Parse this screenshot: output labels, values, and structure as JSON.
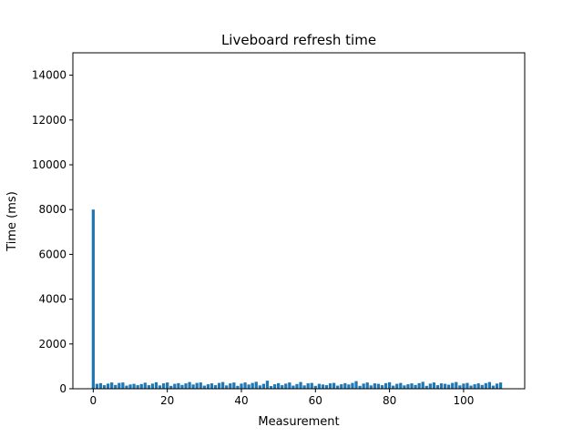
{
  "chart_data": {
    "type": "bar",
    "title": "Liveboard refresh time",
    "xlabel": "Measurement",
    "ylabel": "Time (ms)",
    "xlim": [
      -5.5,
      116.5
    ],
    "ylim": [
      0,
      15000
    ],
    "xticks": [
      0,
      20,
      40,
      60,
      80,
      100
    ],
    "yticks": [
      0,
      2000,
      4000,
      6000,
      8000,
      10000,
      12000,
      14000
    ],
    "grid": false,
    "bar_color": "#1f77b4",
    "x": [
      0,
      1,
      2,
      3,
      4,
      5,
      6,
      7,
      8,
      9,
      10,
      11,
      12,
      13,
      14,
      15,
      16,
      17,
      18,
      19,
      20,
      21,
      22,
      23,
      24,
      25,
      26,
      27,
      28,
      29,
      30,
      31,
      32,
      33,
      34,
      35,
      36,
      37,
      38,
      39,
      40,
      41,
      42,
      43,
      44,
      45,
      46,
      47,
      48,
      49,
      50,
      51,
      52,
      53,
      54,
      55,
      56,
      57,
      58,
      59,
      60,
      61,
      62,
      63,
      64,
      65,
      66,
      67,
      68,
      69,
      70,
      71,
      72,
      73,
      74,
      75,
      76,
      77,
      78,
      79,
      80,
      81,
      82,
      83,
      84,
      85,
      86,
      87,
      88,
      89,
      90,
      91,
      92,
      93,
      94,
      95,
      96,
      97,
      98,
      99,
      100,
      101,
      102,
      103,
      104,
      105,
      106,
      107,
      108,
      109,
      110
    ],
    "values": [
      8000,
      220,
      250,
      160,
      230,
      280,
      170,
      260,
      280,
      140,
      190,
      220,
      160,
      210,
      270,
      160,
      230,
      290,
      150,
      240,
      280,
      130,
      220,
      250,
      170,
      240,
      300,
      190,
      260,
      280,
      140,
      200,
      240,
      160,
      260,
      300,
      150,
      240,
      280,
      130,
      230,
      280,
      190,
      260,
      310,
      150,
      220,
      360,
      120,
      200,
      250,
      160,
      230,
      280,
      140,
      210,
      300,
      150,
      240,
      260,
      130,
      220,
      190,
      160,
      240,
      260,
      140,
      200,
      250,
      190,
      260,
      340,
      130,
      230,
      280,
      150,
      240,
      220,
      160,
      250,
      290,
      140,
      220,
      260,
      150,
      200,
      240,
      170,
      250,
      310,
      130,
      230,
      280,
      160,
      240,
      220,
      180,
      260,
      300,
      150,
      230,
      260,
      140,
      200,
      240,
      170,
      250,
      300,
      140,
      230,
      280
    ]
  }
}
